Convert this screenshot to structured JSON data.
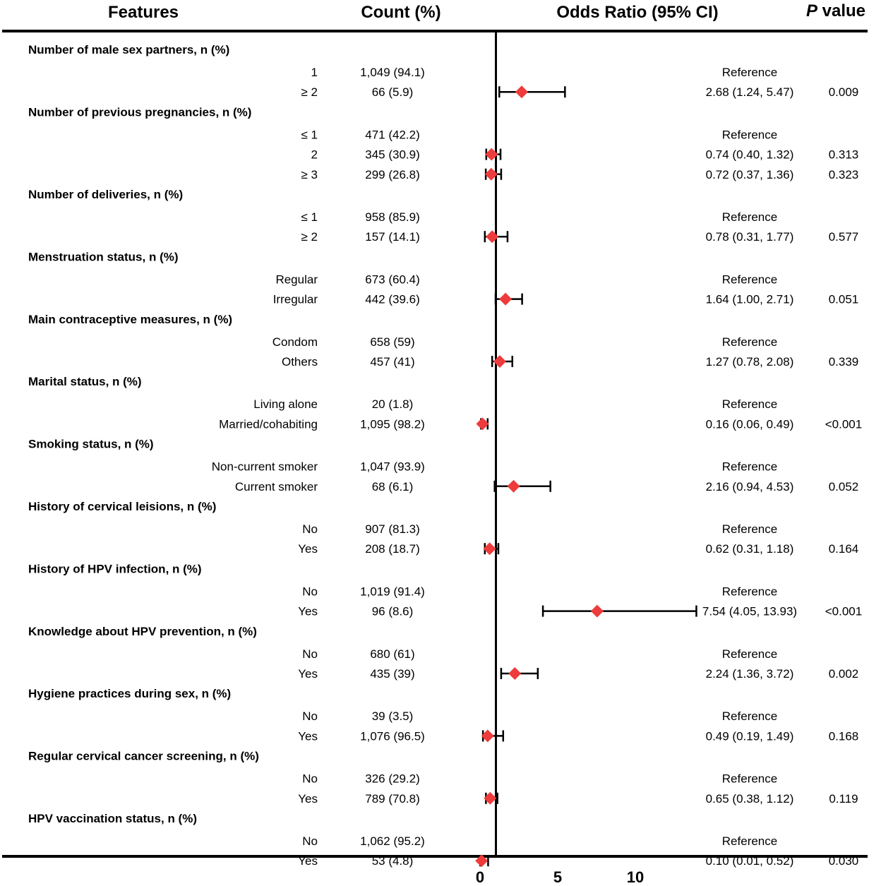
{
  "chart_data": {
    "type": "forest",
    "headers": {
      "features": "Features",
      "count": "Count (%)",
      "odds_ratio": "Odds Ratio (95% CI)",
      "p": "P",
      "p_suffix": " value"
    },
    "x_axis": {
      "ticks": [
        "0",
        "5",
        "10"
      ],
      "reference_line": 1,
      "range": [
        0,
        14
      ]
    },
    "groups": [
      {
        "label": "Number of male sex partners, n (%)",
        "rows": [
          {
            "level": "1",
            "count": "1,049 (94.1)",
            "or_text": "Reference",
            "p": ""
          },
          {
            "level": "≥ 2",
            "count": "66 (5.9)",
            "or_text": "2.68 (1.24, 5.47)",
            "p": "0.009",
            "est": 2.68,
            "ci": [
              1.24,
              5.47
            ]
          }
        ]
      },
      {
        "label": "Number of previous pregnancies, n (%)",
        "rows": [
          {
            "level": "≤ 1",
            "count": "471 (42.2)",
            "or_text": "Reference",
            "p": ""
          },
          {
            "level": "2",
            "count": "345 (30.9)",
            "or_text": "0.74 (0.40, 1.32)",
            "p": "0.313",
            "est": 0.74,
            "ci": [
              0.4,
              1.32
            ]
          },
          {
            "level": "≥ 3",
            "count": "299 (26.8)",
            "or_text": "0.72  (0.37, 1.36)",
            "p": "0.323",
            "est": 0.72,
            "ci": [
              0.37,
              1.36
            ]
          }
        ]
      },
      {
        "label": "Number of deliveries, n (%)",
        "rows": [
          {
            "level": "≤ 1",
            "count": "958 (85.9)",
            "or_text": "Reference",
            "p": ""
          },
          {
            "level": "≥ 2",
            "count": "157 (14.1)",
            "or_text": "0.78 (0.31, 1.77)",
            "p": "0.577",
            "est": 0.78,
            "ci": [
              0.31,
              1.77
            ]
          }
        ]
      },
      {
        "label": "Menstruation status, n (%)",
        "rows": [
          {
            "level": "Regular",
            "count": "673 (60.4)",
            "or_text": "Reference",
            "p": ""
          },
          {
            "level": "Irregular",
            "count": "442 (39.6)",
            "or_text": "1.64 (1.00, 2.71)",
            "p": "0.051",
            "est": 1.64,
            "ci": [
              1.0,
              2.71
            ]
          }
        ]
      },
      {
        "label": "Main contraceptive measures, n (%)",
        "rows": [
          {
            "level": "Condom",
            "count": "658 (59)",
            "or_text": "Reference",
            "p": ""
          },
          {
            "level": "Others",
            "count": "457 (41)",
            "or_text": "1.27 (0.78, 2.08)",
            "p": "0.339",
            "est": 1.27,
            "ci": [
              0.78,
              2.08
            ]
          }
        ]
      },
      {
        "label": "Marital status, n (%)",
        "rows": [
          {
            "level": "Living alone",
            "count": "20 (1.8)",
            "or_text": "Reference",
            "p": ""
          },
          {
            "level": "Married/cohabiting",
            "count": "1,095 (98.2)",
            "or_text": "0.16 (0.06, 0.49)",
            "p": "<0.001",
            "est": 0.16,
            "ci": [
              0.06,
              0.49
            ]
          }
        ]
      },
      {
        "label": "Smoking status, n (%)",
        "rows": [
          {
            "level": "Non-current smoker",
            "count": "1,047 (93.9)",
            "or_text": "Reference",
            "p": ""
          },
          {
            "level": "Current smoker",
            "count": "68 (6.1)",
            "or_text": "2.16 (0.94, 4.53)",
            "p": "0.052",
            "est": 2.16,
            "ci": [
              0.94,
              4.53
            ]
          }
        ]
      },
      {
        "label": "History of cervical leisions, n (%)",
        "rows": [
          {
            "level": "No",
            "count": "907 (81.3)",
            "or_text": "Reference",
            "p": ""
          },
          {
            "level": "Yes",
            "count": "208 (18.7)",
            "or_text": "0.62 (0.31, 1.18)",
            "p": "0.164",
            "est": 0.62,
            "ci": [
              0.31,
              1.18
            ]
          }
        ]
      },
      {
        "label": "History of HPV infection, n (%)",
        "rows": [
          {
            "level": "No",
            "count": "1,019 (91.4)",
            "or_text": "Reference",
            "p": ""
          },
          {
            "level": "Yes",
            "count": "96 (8.6)",
            "or_text": "7.54 (4.05, 13.93)",
            "p": "<0.001",
            "est": 7.54,
            "ci": [
              4.05,
              13.93
            ]
          }
        ]
      },
      {
        "label": "Knowledge about HPV prevention, n (%)",
        "rows": [
          {
            "level": "No",
            "count": "680 (61)",
            "or_text": "Reference",
            "p": ""
          },
          {
            "level": "Yes",
            "count": "435 (39)",
            "or_text": "2.24 (1.36, 3.72)",
            "p": "0.002",
            "est": 2.24,
            "ci": [
              1.36,
              3.72
            ]
          }
        ]
      },
      {
        "label": "Hygiene practices during sex, n (%)",
        "rows": [
          {
            "level": "No",
            "count": "39 (3.5)",
            "or_text": "Reference",
            "p": ""
          },
          {
            "level": "Yes",
            "count": "1,076 (96.5)",
            "or_text": "0.49 (0.19, 1.49)",
            "p": "0.168",
            "est": 0.49,
            "ci": [
              0.19,
              1.49
            ]
          }
        ]
      },
      {
        "label": "Regular cervical cancer screening, n (%)",
        "rows": [
          {
            "level": "No",
            "count": "326 (29.2)",
            "or_text": "Reference",
            "p": ""
          },
          {
            "level": "Yes",
            "count": "789 (70.8)",
            "or_text": "0.65 (0.38, 1.12)",
            "p": "0.119",
            "est": 0.65,
            "ci": [
              0.38,
              1.12
            ]
          }
        ]
      },
      {
        "label": "HPV vaccination status, n (%)",
        "rows": [
          {
            "level": "No",
            "count": "1,062 (95.2)",
            "or_text": "Reference",
            "p": ""
          },
          {
            "level": "Yes",
            "count": "53 (4.8)",
            "or_text": "0.10 (0.01, 0.52)",
            "p": "0.030",
            "est": 0.1,
            "ci": [
              0.01,
              0.52
            ]
          }
        ]
      }
    ],
    "colors": {
      "marker": "#ee3b3b",
      "line": "#000000"
    }
  }
}
